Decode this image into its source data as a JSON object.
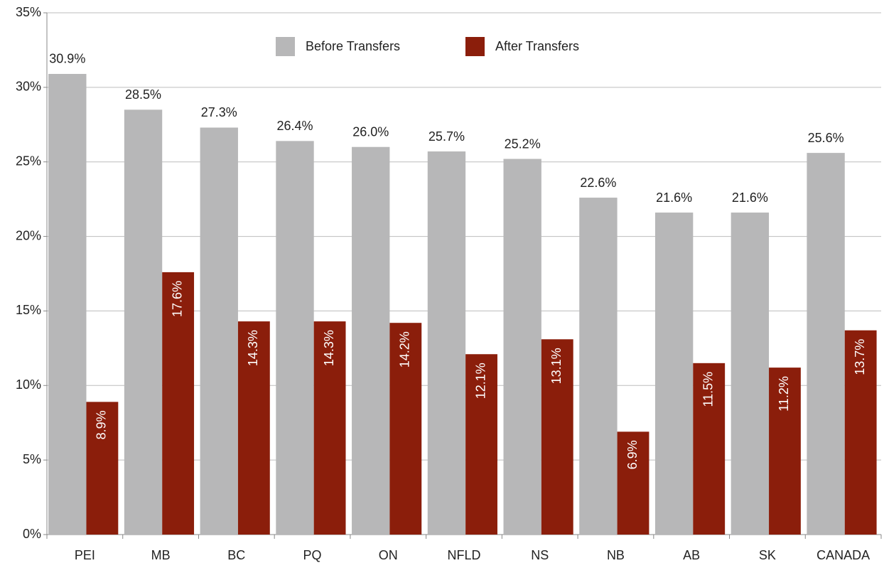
{
  "chart_data": {
    "type": "bar",
    "categories": [
      "PEI",
      "MB",
      "BC",
      "PQ",
      "ON",
      "NFLD",
      "NS",
      "NB",
      "AB",
      "SK",
      "CANADA"
    ],
    "series": [
      {
        "name": "Before Transfers",
        "color": "#b7b7b8",
        "values": [
          30.9,
          28.5,
          27.3,
          26.4,
          26.0,
          25.7,
          25.2,
          22.6,
          21.6,
          21.6,
          25.6
        ],
        "value_labels": [
          "30.9%",
          "28.5%",
          "27.3%",
          "26.4%",
          "26.0%",
          "25.7%",
          "25.2%",
          "22.6%",
          "21.6%",
          "21.6%",
          "25.6%"
        ]
      },
      {
        "name": "After Transfers",
        "color": "#8b1e0b",
        "values": [
          8.9,
          17.6,
          14.3,
          14.3,
          14.2,
          12.1,
          13.1,
          6.9,
          11.5,
          11.2,
          13.7
        ],
        "value_labels": [
          "8.9%",
          "17.6%",
          "14.3%",
          "14.3%",
          "14.2%",
          "12.1%",
          "13.1%",
          "6.9%",
          "11.5%",
          "11.2%",
          "13.7%"
        ]
      }
    ],
    "ylim": [
      0,
      35
    ],
    "yticks": [
      {
        "value": 0,
        "label": "0%"
      },
      {
        "value": 5,
        "label": "5%"
      },
      {
        "value": 10,
        "label": "10%"
      },
      {
        "value": 15,
        "label": "15%"
      },
      {
        "value": 20,
        "label": "20%"
      },
      {
        "value": 25,
        "label": "25%"
      },
      {
        "value": 30,
        "label": "30%"
      },
      {
        "value": 35,
        "label": "35%"
      }
    ],
    "grid": true,
    "legend": "top"
  }
}
